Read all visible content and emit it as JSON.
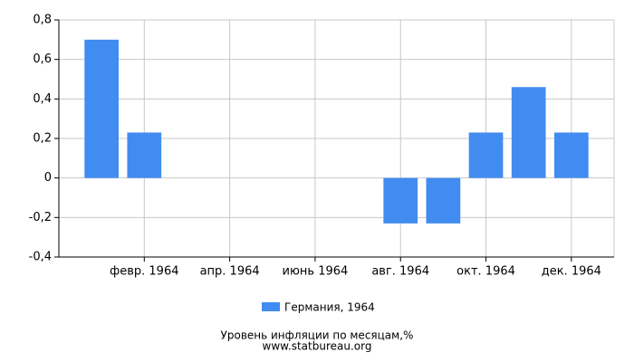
{
  "chart_data": {
    "type": "bar",
    "categories": [
      null,
      "февр. 1964",
      null,
      "апр. 1964",
      null,
      "июнь 1964",
      null,
      "авг. 1964",
      null,
      "окт. 1964",
      null,
      "дек. 1964"
    ],
    "series": [
      {
        "name": "Германия, 1964",
        "color": "#418cf0",
        "values": [
          0.7,
          0.23,
          0,
          0,
          0,
          0,
          0,
          -0.23,
          -0.23,
          0.23,
          0.46,
          0.23
        ]
      }
    ],
    "ylim": [
      -0.4,
      0.8
    ],
    "yticks": [
      {
        "value": -0.4,
        "label": "-0,4"
      },
      {
        "value": -0.2,
        "label": "-0,2"
      },
      0,
      {
        "value": 0.2,
        "label": "0,2"
      },
      {
        "value": 0.4,
        "label": "0,4"
      },
      {
        "value": 0.6,
        "label": "0,6"
      },
      {
        "value": 0.8,
        "label": "0,8"
      }
    ],
    "grid": true,
    "title": "Уровень инфляции по месяцам,%",
    "subtitle": "www.statbureau.org"
  }
}
